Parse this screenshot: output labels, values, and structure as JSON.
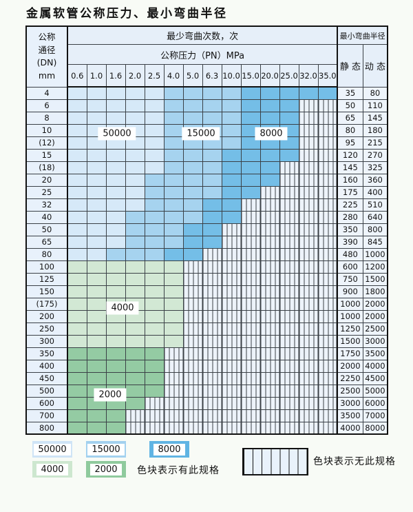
{
  "title": "金属软管公称压力、最小弯曲半径",
  "table": {
    "dn_header_lines": [
      "公称",
      "通径",
      "(DN)",
      "mm"
    ],
    "bend_times_header": "最少弯曲次数，次",
    "pressure_header": "公称压力（PN）MPa",
    "radius_header": "最小弯曲半径",
    "static_label": "静 态",
    "dynamic_label": "动 态",
    "pressure_columns": [
      "0.6",
      "1.0",
      "1.6",
      "2.0",
      "2.5",
      "4.0",
      "5.0",
      "6.3",
      "10.0",
      "15.0",
      "20.0",
      "25.0",
      "32.0",
      "35.0"
    ],
    "cell_legend": {
      "b1": "50000",
      "b2": "15000",
      "b3": "8000",
      "g1": "4000",
      "g2": "2000",
      "h": "no-spec"
    },
    "rows": [
      {
        "dn": "4",
        "cells": "b1 b1 b1 b1 b1 b2 b2 b2 b2 b3 b3 b3 b3 b3",
        "static": "35",
        "dynamic": "80"
      },
      {
        "dn": "6",
        "cells": "b1 b1 b1 b1 b1 b2 b2 b2 b2 b3 b3 b3 h h",
        "static": "50",
        "dynamic": "110"
      },
      {
        "dn": "8",
        "cells": "b1 b1 b1 b1 b1 b2 b2 b2 b2 b3 b3 b3 h h",
        "static": "65",
        "dynamic": "145"
      },
      {
        "dn": "10",
        "cells": "b1 b1 b1 b1 b1 b2 b2 b2 b2 b3 b3 b3 h h",
        "static": "80",
        "dynamic": "180"
      },
      {
        "dn": "(12)",
        "cells": "b1 b1 b1 b1 b1 b2 b2 b2 b2 b3 b3 b3 h h",
        "static": "95",
        "dynamic": "215"
      },
      {
        "dn": "15",
        "cells": "b1 b1 b1 b1 b1 b2 b2 b2 b3 b3 b3 b3 h h",
        "static": "120",
        "dynamic": "270"
      },
      {
        "dn": "(18)",
        "cells": "b1 b1 b1 b1 b1 b2 b2 b2 b3 b3 b3 h h h",
        "static": "145",
        "dynamic": "325"
      },
      {
        "dn": "20",
        "cells": "b1 b1 b1 b1 b2 b2 b2 b2 b3 b3 b3 h h h",
        "static": "160",
        "dynamic": "360"
      },
      {
        "dn": "25",
        "cells": "b1 b1 b1 b1 b2 b2 b2 b2 b3 b3 h h h h",
        "static": "175",
        "dynamic": "400"
      },
      {
        "dn": "32",
        "cells": "b1 b1 b1 b1 b2 b2 b2 b3 b3 h h h h h",
        "static": "225",
        "dynamic": "510"
      },
      {
        "dn": "40",
        "cells": "b1 b1 b1 b2 b2 b2 b2 b3 b3 h h h h h",
        "static": "280",
        "dynamic": "640"
      },
      {
        "dn": "50",
        "cells": "b1 b1 b1 b2 b2 b2 b3 b3 h h h h h h",
        "static": "350",
        "dynamic": "800"
      },
      {
        "dn": "65",
        "cells": "b1 b1 b1 b2 b2 b2 b3 b3 h h h h h h",
        "static": "390",
        "dynamic": "845"
      },
      {
        "dn": "80",
        "cells": "b1 b1 b2 b2 b2 b3 b3 h h h h h h h",
        "static": "480",
        "dynamic": "1000"
      },
      {
        "dn": "100",
        "cells": "g1 g1 g1 g1 g1 g1 h h h h h h h h",
        "static": "600",
        "dynamic": "1200"
      },
      {
        "dn": "125",
        "cells": "g1 g1 g1 g1 g1 g1 h h h h h h h h",
        "static": "750",
        "dynamic": "1500"
      },
      {
        "dn": "150",
        "cells": "g1 g1 g1 g1 g1 g1 h h h h h h h h",
        "static": "900",
        "dynamic": "1800"
      },
      {
        "dn": "(175)",
        "cells": "g1 g1 g1 g1 g1 g1 h h h h h h h h",
        "static": "1000",
        "dynamic": "2000"
      },
      {
        "dn": "200",
        "cells": "g1 g1 g1 g1 g1 g1 h h h h h h h h",
        "static": "1000",
        "dynamic": "2000"
      },
      {
        "dn": "250",
        "cells": "g1 g1 g1 g1 g1 g1 h h h h h h h h",
        "static": "1250",
        "dynamic": "2500"
      },
      {
        "dn": "300",
        "cells": "g1 g1 g1 g1 g1 g1 h h h h h h h h",
        "static": "1500",
        "dynamic": "3000"
      },
      {
        "dn": "350",
        "cells": "g2 g2 g2 g2 g2 h h h h h h h h h",
        "static": "1750",
        "dynamic": "3500"
      },
      {
        "dn": "400",
        "cells": "g2 g2 g2 g2 g2 h h h h h h h h h",
        "static": "2000",
        "dynamic": "4000"
      },
      {
        "dn": "450",
        "cells": "g2 g2 g2 g2 g2 h h h h h h h h h",
        "static": "2250",
        "dynamic": "4500"
      },
      {
        "dn": "500",
        "cells": "g2 g2 g2 g2 g2 h h h h h h h h h",
        "static": "2500",
        "dynamic": "5000"
      },
      {
        "dn": "600",
        "cells": "g2 g2 g2 g2 h h h h h h h h h h",
        "static": "3000",
        "dynamic": "6000"
      },
      {
        "dn": "700",
        "cells": "g2 g2 g2 h h h h h h h h h h h",
        "static": "3500",
        "dynamic": "7000"
      },
      {
        "dn": "800",
        "cells": "g2 g2 g2 h h h h h h h h h h h",
        "static": "4000",
        "dynamic": "8000"
      }
    ],
    "overlay_labels": [
      {
        "text": "50000"
      },
      {
        "text": "15000"
      },
      {
        "text": "8000"
      },
      {
        "text": "4000"
      },
      {
        "text": "2000"
      }
    ]
  },
  "legend": {
    "present_blocks": [
      {
        "value": "50000",
        "color": "#cfe4f6"
      },
      {
        "value": "15000",
        "color": "#a3d1ef"
      },
      {
        "value": "8000",
        "color": "#60b4e3"
      },
      {
        "value": "4000",
        "color": "#cde7cf"
      },
      {
        "value": "2000",
        "color": "#8fca9d"
      }
    ],
    "present_text": "色块表示有此规格",
    "absent_text": "色块表示无此规格"
  },
  "colors": {
    "b1": "#d6e9f8",
    "b2": "#a6d3ef",
    "b3": "#74bee7",
    "g1": "#d2e8d4",
    "g2": "#94cba3",
    "hatch_bg": "#edf3fa",
    "header_bg": "#e6eff9",
    "dn_bg": "#e8f1fb",
    "radius_bg": "#eef4fb"
  }
}
